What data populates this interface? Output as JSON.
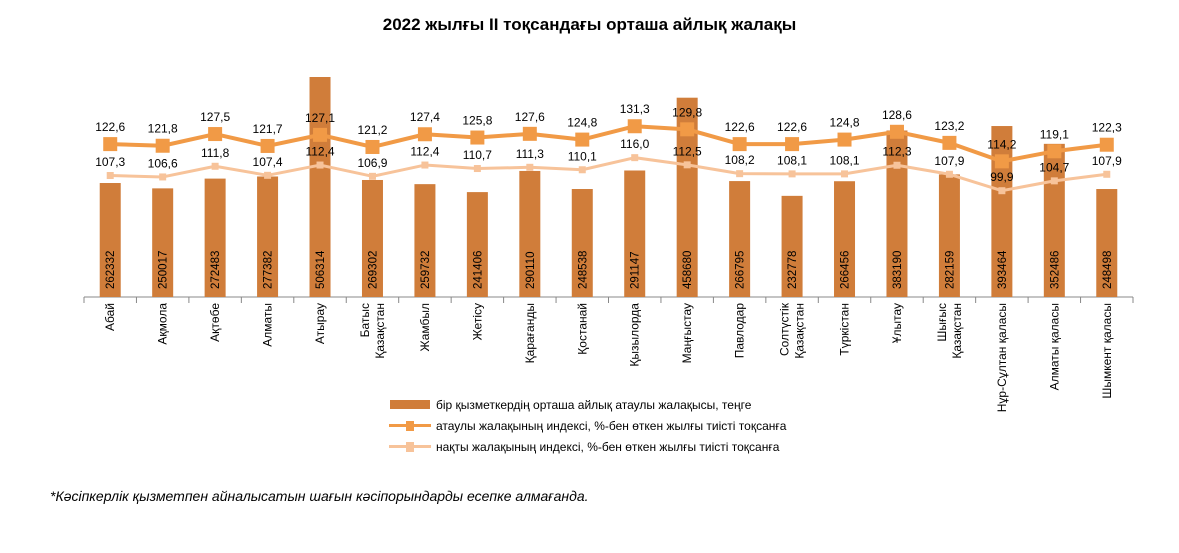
{
  "title": "2022 жылғы II тоқсандағы орташа айлық жалақы",
  "footnote": "*Кәсіпкерлік қызметпен айналысатын шағын кәсіпорындарды есепке алмағанда.",
  "colors": {
    "bar": "#D07D3A",
    "nominal": "#F19A46",
    "real": "#F7C39A",
    "axis": "#888888"
  },
  "chart_data": {
    "type": "bar",
    "title": "2022 жылғы II тоқсандағы орташа айлық жалақы",
    "categories": [
      [
        "Абай"
      ],
      [
        "Ақмола"
      ],
      [
        "Ақтөбе"
      ],
      [
        "Алматы"
      ],
      [
        "Атырау"
      ],
      [
        "Батыс",
        "Қазақстан"
      ],
      [
        "Жамбыл"
      ],
      [
        "Жетісу"
      ],
      [
        "Қарағанды"
      ],
      [
        "Қостанай"
      ],
      [
        "Қызылорда"
      ],
      [
        "Маңғыстау"
      ],
      [
        "Павлодар"
      ],
      [
        "Солтүстік",
        "Қазақстан"
      ],
      [
        "Түркістан"
      ],
      [
        "Ұлытау"
      ],
      [
        "Шығыс",
        "Қазақстан"
      ],
      [
        "Нұр-Сұлтан қаласы"
      ],
      [
        "Алматы қаласы"
      ],
      [
        "Шымкент қаласы"
      ]
    ],
    "series": [
      {
        "name": "бір қызметкердің орташа айлық атаулы жалақысы, теңге",
        "type": "bar",
        "values": [
          262332,
          250017,
          272483,
          277382,
          506314,
          269302,
          259732,
          241406,
          290110,
          248538,
          291147,
          458680,
          266795,
          232778,
          266456,
          383190,
          282159,
          393464,
          352486,
          248498
        ]
      },
      {
        "name": "атаулы жалақының индексі, %-бен өткен жылғы тиісті тоқсанға",
        "type": "line",
        "values": [
          122.6,
          121.8,
          127.5,
          121.7,
          127.1,
          121.2,
          127.4,
          125.8,
          127.6,
          124.8,
          131.3,
          129.8,
          122.6,
          122.6,
          124.8,
          128.6,
          123.2,
          114.2,
          119.1,
          122.3
        ]
      },
      {
        "name": "нақты жалақының индексі, %-бен өткен жылғы тиісті тоқсанға",
        "type": "line",
        "values": [
          107.3,
          106.6,
          111.8,
          107.4,
          112.4,
          106.9,
          112.4,
          110.7,
          111.3,
          110.1,
          116.0,
          112.5,
          108.2,
          108.1,
          108.1,
          112.3,
          107.9,
          99.9,
          104.7,
          107.9
        ]
      }
    ],
    "grid": false,
    "legend_position": "bottom"
  }
}
